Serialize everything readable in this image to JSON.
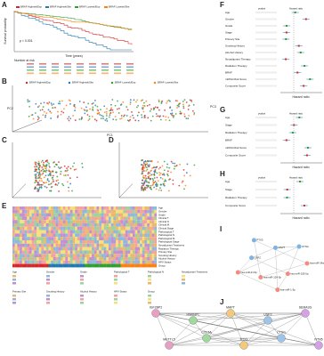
{
  "panel_labels": [
    "A",
    "B",
    "C",
    "D",
    "E",
    "F",
    "G",
    "H",
    "I",
    "J"
  ],
  "km": {
    "y_label": "Survival probability",
    "x_label": "Time (years)",
    "p_value": "p < 0.001",
    "legend": [
      "BRAF Highrisk/Exp",
      "BRAF Highrisk/Ske",
      "BRAF Lowrisk/Exp",
      "BRAF Lowrisk/Ske"
    ],
    "risk_table_title": "Number at risk"
  },
  "pca": {
    "legend": [
      "BRAF Highrisk/Exp",
      "BRAF Highrisk/Ske",
      "BRAF Lowrisk/Exp",
      "BRAF Lowrisk/Ske"
    ],
    "axes": [
      "PC1",
      "PC2",
      "PC3"
    ]
  },
  "forest_f": {
    "headers": [
      "pvalue",
      "Hazard ratio"
    ],
    "rows": [
      "Age",
      "Gender",
      "Grade",
      "Stage",
      "Primary Site",
      "Smoking History",
      "Alcohol History",
      "Neoadjuvant Therapy",
      "Radiation Therapy",
      "BRAF",
      "mRNA Risk Score",
      "Composite Score"
    ],
    "x_label": "Hazard ratio"
  },
  "forest_g": {
    "headers": [
      "pvalue",
      "Hazard ratio"
    ],
    "rows": [
      "Age",
      "Stage",
      "Radiation Therapy",
      "BRAF",
      "mRNA Risk Score",
      "Composite Score"
    ],
    "x_label": "Hazard ratio"
  },
  "forest_h": {
    "headers": [
      "pvalue",
      "Hazard ratio"
    ],
    "rows": [
      "Age",
      "Stage",
      "Radiation Therapy",
      "Composite Score"
    ],
    "x_label": "Hazard ratio"
  },
  "heatmap": {
    "rows": [
      "Age",
      "Gender",
      "Grade",
      "Clinical T",
      "Clinical N",
      "Clinical M",
      "Clinical Stage",
      "Pathological T",
      "Pathological N",
      "Pathological M",
      "Pathological Stage",
      "Neoadjuvant Treatment",
      "Radiation Therapy",
      "Primary Site",
      "Smoking History",
      "Alcohol History",
      "HPV Status",
      "Group"
    ],
    "legend_titles": [
      "Age",
      "Gender",
      "Grade",
      "Pathological T",
      "Pathological N",
      "Neoadjuvant Treatment",
      "Primary Site",
      "Smoking History",
      "Alcohol History",
      "HPV Status",
      "Group"
    ]
  },
  "network_i": {
    "nodes": [
      "hsa-miR-34a-5p",
      "hsa-miR-155-5p",
      "hsa-miR-1-3p",
      "hsa-miR-124-3p",
      "hsa-miR-21-5p",
      "USP2",
      "PTX3",
      "MAPT",
      "CTSG"
    ]
  },
  "network_j": {
    "nodes": [
      "IGF2BP2",
      "HNRNPC",
      "MAPT",
      "USP2",
      "SEMA3G",
      "METTL5",
      "COL5A",
      "PTX3",
      "CTSG",
      "NTN5"
    ]
  }
}
